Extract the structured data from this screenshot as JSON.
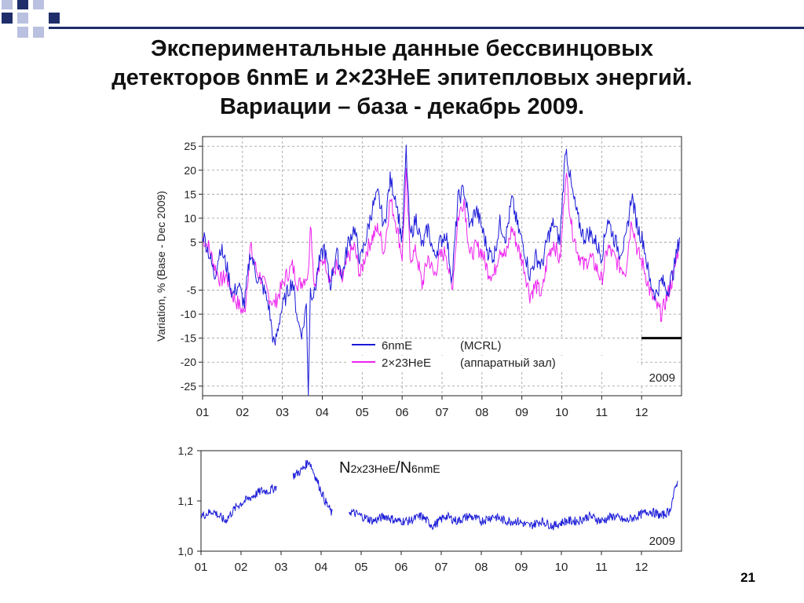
{
  "slide": {
    "title_lines": [
      "Экспериментальные данные бессвинцовых",
      "детекторов 6nmE и 2×23HeE эпитепловых энергий.",
      "Вариации – база - декабрь 2009."
    ],
    "slide_number": "21"
  },
  "colors": {
    "deco_dark": "#1f2d6b",
    "deco_light": "#b9c0e0",
    "series_6nmE": "#1a1ad8",
    "series_2x23HeE": "#ee22ee"
  },
  "chart_data": [
    {
      "type": "line",
      "ylabel": "Variation, %   (Base - Dec 2009)",
      "year_label": "2009",
      "x_tick_labels": [
        "01",
        "02",
        "03",
        "04",
        "05",
        "06",
        "07",
        "08",
        "09",
        "10",
        "11",
        "12"
      ],
      "y_tick_labels": [
        "25",
        "20",
        "15",
        "10",
        "5",
        "-5",
        "-10",
        "-15",
        "-20",
        "-25"
      ],
      "y_tick_values": [
        25,
        20,
        15,
        10,
        5,
        -5,
        -10,
        -15,
        -20,
        -25
      ],
      "ylim": [
        -27,
        27
      ],
      "xlim": [
        1,
        13
      ],
      "grid": true,
      "legend_position": "bottom-center",
      "base_line": {
        "x": [
          12.0,
          13.0
        ],
        "y": -15
      },
      "series": [
        {
          "name": "6nmE",
          "legend_label": "(MCRL)",
          "color": "#1a1ad8",
          "x": [
            1.0,
            1.15,
            1.3,
            1.45,
            1.6,
            1.75,
            1.9,
            2.05,
            2.2,
            2.35,
            2.5,
            2.65,
            2.8,
            2.95,
            3.1,
            3.25,
            3.4,
            3.5,
            3.6,
            3.65,
            3.7,
            3.8,
            3.9,
            4.05,
            4.2,
            4.35,
            4.5,
            4.65,
            4.8,
            4.95,
            5.1,
            5.25,
            5.4,
            5.55,
            5.7,
            5.85,
            6.0,
            6.1,
            6.2,
            6.35,
            6.5,
            6.65,
            6.8,
            6.95,
            7.1,
            7.25,
            7.4,
            7.55,
            7.7,
            7.85,
            8.0,
            8.15,
            8.3,
            8.45,
            8.6,
            8.75,
            8.9,
            9.05,
            9.2,
            9.35,
            9.5,
            9.65,
            9.8,
            9.95,
            10.0,
            10.1,
            10.25,
            10.4,
            10.55,
            10.7,
            10.85,
            11.0,
            11.15,
            11.3,
            11.45,
            11.6,
            11.75,
            11.9,
            12.05,
            12.2,
            12.35,
            12.5,
            12.65,
            12.8,
            12.95
          ],
          "y": [
            7,
            3,
            -2,
            4,
            0,
            -6,
            -4,
            -8,
            3,
            -2,
            -4,
            -8,
            -17,
            -10,
            -6,
            -3,
            -12,
            -14,
            -8,
            -26,
            -5,
            -6,
            0,
            4,
            -4,
            3,
            -2,
            5,
            8,
            1,
            6,
            12,
            15,
            8,
            18,
            14,
            5,
            24,
            6,
            10,
            4,
            8,
            2,
            5,
            7,
            -3,
            14,
            16,
            8,
            12,
            8,
            3,
            2,
            9,
            6,
            14,
            8,
            4,
            -2,
            2,
            0,
            6,
            9,
            5,
            12,
            25,
            16,
            10,
            6,
            7,
            5,
            2,
            10,
            6,
            3,
            5,
            15,
            8,
            5,
            -3,
            -6,
            -3,
            -5,
            -1,
            6
          ]
        },
        {
          "name": "2×23HeE",
          "legend_label": "(аппаратный зал)",
          "color": "#ee22ee",
          "x": [
            1.0,
            1.15,
            1.3,
            1.45,
            1.6,
            1.75,
            1.9,
            2.05,
            2.2,
            2.35,
            2.5,
            2.65,
            2.8,
            2.95,
            3.1,
            3.25,
            3.4,
            3.5,
            3.6,
            3.65,
            3.7,
            3.8,
            3.9,
            4.05,
            4.2,
            4.35,
            4.5,
            4.65,
            4.8,
            4.95,
            5.1,
            5.25,
            5.4,
            5.55,
            5.7,
            5.85,
            6.0,
            6.1,
            6.2,
            6.35,
            6.5,
            6.65,
            6.8,
            6.95,
            7.1,
            7.25,
            7.4,
            7.55,
            7.7,
            7.85,
            8.0,
            8.15,
            8.3,
            8.45,
            8.6,
            8.75,
            8.9,
            9.05,
            9.2,
            9.35,
            9.5,
            9.65,
            9.8,
            9.95,
            10.0,
            10.1,
            10.25,
            10.4,
            10.55,
            10.7,
            10.85,
            11.0,
            11.15,
            11.3,
            11.45,
            11.6,
            11.75,
            11.9,
            12.05,
            12.2,
            12.35,
            12.5,
            12.65,
            12.8,
            12.95
          ],
          "y": [
            6,
            4,
            0,
            -3,
            -2,
            -6,
            -8,
            -10,
            4,
            -1,
            -3,
            -6,
            -8,
            -5,
            -2,
            0,
            -4,
            -3,
            -2,
            -2,
            10,
            -4,
            -1,
            2,
            -3,
            0,
            -3,
            2,
            4,
            -2,
            3,
            6,
            8,
            3,
            14,
            9,
            2,
            19,
            2,
            3,
            -4,
            2,
            -2,
            2,
            3,
            -5,
            10,
            14,
            2,
            4,
            3,
            -1,
            -2,
            4,
            2,
            8,
            4,
            0,
            -6,
            -4,
            -6,
            2,
            5,
            1,
            6,
            20,
            8,
            3,
            0,
            2,
            0,
            -3,
            4,
            2,
            0,
            -1,
            10,
            3,
            0,
            -5,
            -8,
            -10,
            -6,
            -2,
            5
          ]
        }
      ]
    },
    {
      "type": "line",
      "annotation": {
        "n": "N",
        "sub1": "2x23HeE",
        "sep": "/N",
        "sub2": "6nmE"
      },
      "year_label": "2009",
      "x_tick_labels": [
        "01",
        "02",
        "03",
        "04",
        "05",
        "06",
        "07",
        "08",
        "09",
        "10",
        "11",
        "12"
      ],
      "y_tick_labels": [
        "1,2",
        "1,1",
        "1,0"
      ],
      "y_tick_values": [
        1.2,
        1.1,
        1.0
      ],
      "ylim": [
        1.0,
        1.2
      ],
      "xlim": [
        1,
        13
      ],
      "grid": false,
      "series": [
        {
          "color": "#1a1ad8",
          "x": [
            1.0,
            1.3,
            1.6,
            1.9,
            2.1,
            2.3,
            2.5,
            2.7,
            2.9,
            3.1,
            3.3,
            3.5,
            3.7,
            3.9,
            4.1,
            4.3,
            4.5,
            4.7,
            5.0,
            5.3,
            5.6,
            5.9,
            6.2,
            6.5,
            6.8,
            7.1,
            7.4,
            7.7,
            8.0,
            8.3,
            8.6,
            8.9,
            9.2,
            9.5,
            9.8,
            10.1,
            10.4,
            10.7,
            11.0,
            11.3,
            11.6,
            11.9,
            12.2,
            12.5,
            12.7,
            12.9
          ],
          "y": [
            1.07,
            1.08,
            1.06,
            1.09,
            1.1,
            1.11,
            1.12,
            1.12,
            1.13,
            null,
            1.15,
            1.16,
            1.18,
            1.14,
            1.1,
            1.07,
            null,
            1.08,
            1.07,
            1.06,
            1.07,
            1.06,
            1.06,
            1.07,
            1.05,
            1.07,
            1.06,
            1.07,
            1.06,
            1.07,
            1.06,
            1.06,
            1.05,
            1.06,
            1.05,
            1.06,
            1.06,
            1.07,
            1.06,
            1.07,
            1.06,
            1.07,
            1.08,
            1.07,
            1.08,
            1.14
          ]
        }
      ]
    }
  ]
}
